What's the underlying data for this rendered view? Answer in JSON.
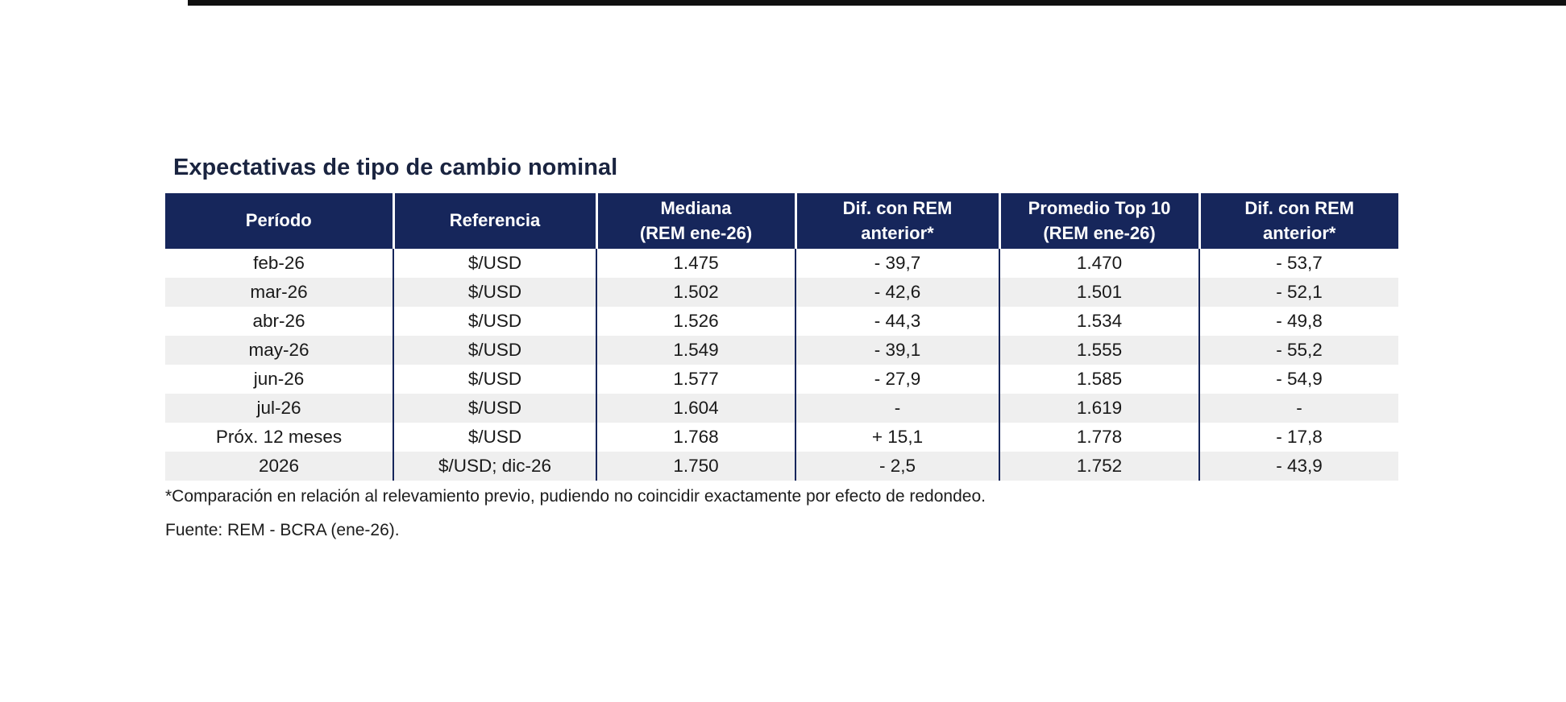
{
  "page": {
    "title": "Expectativas de tipo de cambio nominal",
    "footnote": "*Comparación en relación al relevamiento previo, pudiendo no coincidir exactamente por efecto de redondeo.",
    "source": "Fuente: REM - BCRA (ene-26)."
  },
  "table": {
    "columns": [
      {
        "id": "periodo",
        "lines": [
          "Período"
        ]
      },
      {
        "id": "referencia",
        "lines": [
          "Referencia"
        ]
      },
      {
        "id": "mediana",
        "lines": [
          "Mediana",
          "(REM ene-26)"
        ]
      },
      {
        "id": "dif-mediana",
        "lines": [
          "Dif. con REM",
          "anterior*"
        ]
      },
      {
        "id": "promedio-top10",
        "lines": [
          "Promedio Top 10",
          "(REM ene-26)"
        ]
      },
      {
        "id": "dif-top10",
        "lines": [
          "Dif. con REM",
          "anterior*"
        ]
      }
    ],
    "rows": [
      [
        "feb-26",
        "$/USD",
        "1.475",
        "- 39,7",
        "1.470",
        "- 53,7"
      ],
      [
        "mar-26",
        "$/USD",
        "1.502",
        "- 42,6",
        "1.501",
        "- 52,1"
      ],
      [
        "abr-26",
        "$/USD",
        "1.526",
        "- 44,3",
        "1.534",
        "- 49,8"
      ],
      [
        "may-26",
        "$/USD",
        "1.549",
        "- 39,1",
        "1.555",
        "- 55,2"
      ],
      [
        "jun-26",
        "$/USD",
        "1.577",
        "- 27,9",
        "1.585",
        "- 54,9"
      ],
      [
        "jul-26",
        "$/USD",
        "1.604",
        "-",
        "1.619",
        "-"
      ],
      [
        "Próx. 12 meses",
        "$/USD",
        "1.768",
        "+ 15,1",
        "1.778",
        "- 17,8"
      ],
      [
        "2026",
        "$/USD; dic-26",
        "1.750",
        "- 2,5",
        "1.752",
        "- 43,9"
      ]
    ]
  },
  "chart_data": {
    "type": "table",
    "title": "Expectativas de tipo de cambio nominal",
    "columns": [
      "Período",
      "Referencia",
      "Mediana (REM ene-26)",
      "Dif. con REM anterior*",
      "Promedio Top 10 (REM ene-26)",
      "Dif. con REM anterior*"
    ],
    "rows": [
      [
        "feb-26",
        "$/USD",
        "1.475",
        "- 39,7",
        "1.470",
        "- 53,7"
      ],
      [
        "mar-26",
        "$/USD",
        "1.502",
        "- 42,6",
        "1.501",
        "- 52,1"
      ],
      [
        "abr-26",
        "$/USD",
        "1.526",
        "- 44,3",
        "1.534",
        "- 49,8"
      ],
      [
        "may-26",
        "$/USD",
        "1.549",
        "- 39,1",
        "1.555",
        "- 55,2"
      ],
      [
        "jun-26",
        "$/USD",
        "1.577",
        "- 27,9",
        "1.585",
        "- 54,9"
      ],
      [
        "jul-26",
        "$/USD",
        "1.604",
        "-",
        "1.619",
        "-"
      ],
      [
        "Próx. 12 meses",
        "$/USD",
        "1.768",
        "+ 15,1",
        "1.778",
        "- 17,8"
      ],
      [
        "2026",
        "$/USD; dic-26",
        "1.750",
        "- 2,5",
        "1.752",
        "- 43,9"
      ]
    ]
  },
  "colors": {
    "header_bg": "#16265b",
    "header_text": "#ffffff",
    "divider": "#16265b",
    "stripe": "#efefef",
    "title_text": "#1a2440",
    "body_text": "#191919"
  }
}
